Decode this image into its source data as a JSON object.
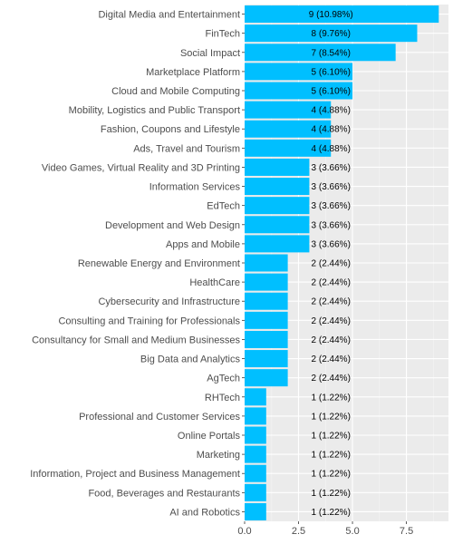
{
  "chart_data": {
    "type": "bar",
    "orientation": "horizontal",
    "title": "",
    "xlabel": "",
    "ylabel": "",
    "xlim": [
      0,
      9.45
    ],
    "xticks": [
      0,
      2.5,
      5,
      7.5
    ],
    "xtick_labels": [
      "0.0",
      "2.5",
      "5.0",
      "7.5"
    ],
    "grid": true,
    "legend": "none",
    "bar_color": "#00bfff",
    "panel_color": "#ebebeb",
    "categories": [
      "Digital Media and Entertainment",
      "FinTech",
      "Social Impact",
      "Marketplace Platform",
      "Cloud and Mobile Computing",
      "Mobility, Logistics and Public Transport",
      "Fashion, Coupons and Lifestyle",
      "Ads, Travel and Tourism",
      "Video Games, Virtual Reality and 3D Printing",
      "Information Services",
      "EdTech",
      "Development and Web Design",
      "Apps and Mobile",
      "Renewable Energy and Environment",
      "HealthCare",
      "Cybersecurity and Infrastructure",
      "Consulting and Training for Professionals",
      "Consultancy for Small and Medium Businesses",
      "Big Data and Analytics",
      "AgTech",
      "RHTech",
      "Professional and Customer Services",
      "Online Portals",
      "Marketing",
      "Information, Project and Business Management",
      "Food, Beverages and Restaurants",
      "AI and Robotics"
    ],
    "values": [
      9,
      8,
      7,
      5,
      5,
      4,
      4,
      4,
      3,
      3,
      3,
      3,
      3,
      2,
      2,
      2,
      2,
      2,
      2,
      2,
      1,
      1,
      1,
      1,
      1,
      1,
      1
    ],
    "data_labels": [
      "9 (10.98%)",
      "8 (9.76%)",
      "7 (8.54%)",
      "5 (6.10%)",
      "5 (6.10%)",
      "4 (4.88%)",
      "4 (4.88%)",
      "4 (4.88%)",
      "3 (3.66%)",
      "3 (3.66%)",
      "3 (3.66%)",
      "3 (3.66%)",
      "3 (3.66%)",
      "2 (2.44%)",
      "2 (2.44%)",
      "2 (2.44%)",
      "2 (2.44%)",
      "2 (2.44%)",
      "2 (2.44%)",
      "2 (2.44%)",
      "1 (1.22%)",
      "1 (1.22%)",
      "1 (1.22%)",
      "1 (1.22%)",
      "1 (1.22%)",
      "1 (1.22%)",
      "1 (1.22%)"
    ],
    "data_label_position": 4
  }
}
